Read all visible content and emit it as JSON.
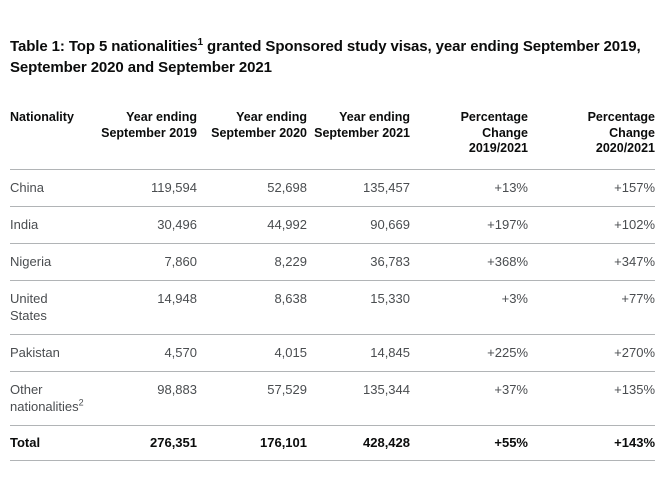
{
  "title": {
    "text_before_sup": "Table 1: Top 5 nationalities",
    "sup": "1",
    "text_after_sup": " granted Sponsored study visas, year ending September 2019, September 2020 and September 2021"
  },
  "table": {
    "columns": [
      {
        "id": "nationality",
        "align": "left",
        "label_lines": [
          "Nationality"
        ]
      },
      {
        "id": "year-ending-september-2019",
        "align": "right",
        "label_lines": [
          "Year ending",
          "September 2019"
        ]
      },
      {
        "id": "year-ending-september-2020",
        "align": "right",
        "label_lines": [
          "Year ending",
          "September 2020"
        ]
      },
      {
        "id": "year-ending-september-2021",
        "align": "right",
        "label_lines": [
          "Year ending",
          "September 2021"
        ]
      },
      {
        "id": "percentage-change-2019-2021",
        "align": "right",
        "label_lines": [
          "Percentage",
          "Change",
          "2019/2021"
        ]
      },
      {
        "id": "percentage-change-2020-2021",
        "align": "right",
        "label_lines": [
          "Percentage",
          "Change",
          "2020/2021"
        ]
      }
    ],
    "rows": [
      {
        "nationality": "China",
        "sup": "",
        "values": [
          "119,594",
          "52,698",
          "135,457",
          "+13%",
          "+157%"
        ],
        "bold": false
      },
      {
        "nationality": "India",
        "sup": "",
        "values": [
          "30,496",
          "44,992",
          "90,669",
          "+197%",
          "+102%"
        ],
        "bold": false
      },
      {
        "nationality": "Nigeria",
        "sup": "",
        "values": [
          "7,860",
          "8,229",
          "36,783",
          "+368%",
          "+347%"
        ],
        "bold": false
      },
      {
        "nationality": "United States",
        "sup": "",
        "values": [
          "14,948",
          "8,638",
          "15,330",
          "+3%",
          "+77%"
        ],
        "bold": false
      },
      {
        "nationality": "Pakistan",
        "sup": "",
        "values": [
          "4,570",
          "4,015",
          "14,845",
          "+225%",
          "+270%"
        ],
        "bold": false
      },
      {
        "nationality": "Other nationalities",
        "sup": "2",
        "values": [
          "98,883",
          "57,529",
          "135,344",
          "+37%",
          "+135%"
        ],
        "bold": false
      },
      {
        "nationality": "Total",
        "sup": "",
        "values": [
          "276,351",
          "176,101",
          "428,428",
          "+55%",
          "+143%"
        ],
        "bold": true
      }
    ]
  },
  "colors": {
    "title_text": "#0b0c0c",
    "header_text": "#0b0c0c",
    "body_text": "#4a4d50",
    "divider": "#b1b4b6",
    "background": "#ffffff"
  },
  "chart_data": {
    "type": "table",
    "title": "Table 1: Top 5 nationalities granted Sponsored study visas, year ending September 2019, September 2020 and September 2021",
    "columns": [
      "Nationality",
      "Year ending September 2019",
      "Year ending September 2020",
      "Year ending September 2021",
      "Percentage Change 2019/2021",
      "Percentage Change 2020/2021"
    ],
    "rows": [
      [
        "China",
        119594,
        52698,
        135457,
        "+13%",
        "+157%"
      ],
      [
        "India",
        30496,
        44992,
        90669,
        "+197%",
        "+102%"
      ],
      [
        "Nigeria",
        7860,
        8229,
        36783,
        "+368%",
        "+347%"
      ],
      [
        "United States",
        14948,
        8638,
        15330,
        "+3%",
        "+77%"
      ],
      [
        "Pakistan",
        4570,
        4015,
        14845,
        "+225%",
        "+270%"
      ],
      [
        "Other nationalities",
        98883,
        57529,
        135344,
        "+37%",
        "+135%"
      ],
      [
        "Total",
        276351,
        176101,
        428428,
        "+55%",
        "+143%"
      ]
    ],
    "footnote_markers": {
      "title": "1",
      "other_nationalities": "2"
    }
  }
}
